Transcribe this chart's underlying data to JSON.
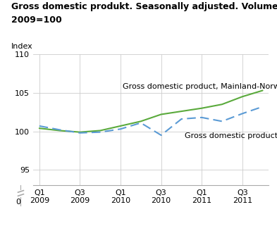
{
  "title_line1": "Gross domestic produkt. Seasonally adjusted. Volume indices.",
  "title_line2": "2009=100",
  "ylabel": "Index",
  "ylim_plot": [
    93,
    110
  ],
  "yticks": [
    95,
    100,
    105,
    110
  ],
  "ytick_bottom": 0,
  "xtick_labels": [
    "Q1\n2009",
    "Q3\n2009",
    "Q1\n2010",
    "Q3\n2010",
    "Q1\n2011",
    "Q3\n2011"
  ],
  "xtick_positions": [
    0,
    2,
    4,
    6,
    8,
    10
  ],
  "gdp_mainland": [
    100.4,
    100.1,
    99.9,
    100.1,
    100.7,
    101.3,
    102.2,
    102.6,
    103.0,
    103.5,
    104.5,
    105.3
  ],
  "gdp_total": [
    100.7,
    100.2,
    99.8,
    99.9,
    100.3,
    101.1,
    99.5,
    101.6,
    101.8,
    101.3,
    102.3,
    103.2
  ],
  "mainland_color": "#5aaa3c",
  "total_color": "#5b9bd5",
  "mainland_label": "Gross domestic product, Mainland-Norway",
  "total_label": "Gross domestic product",
  "background_color": "#ffffff",
  "grid_color": "#cccccc",
  "title_fontsize": 9,
  "label_fontsize": 8,
  "tick_fontsize": 8,
  "annotation_fontsize": 8
}
